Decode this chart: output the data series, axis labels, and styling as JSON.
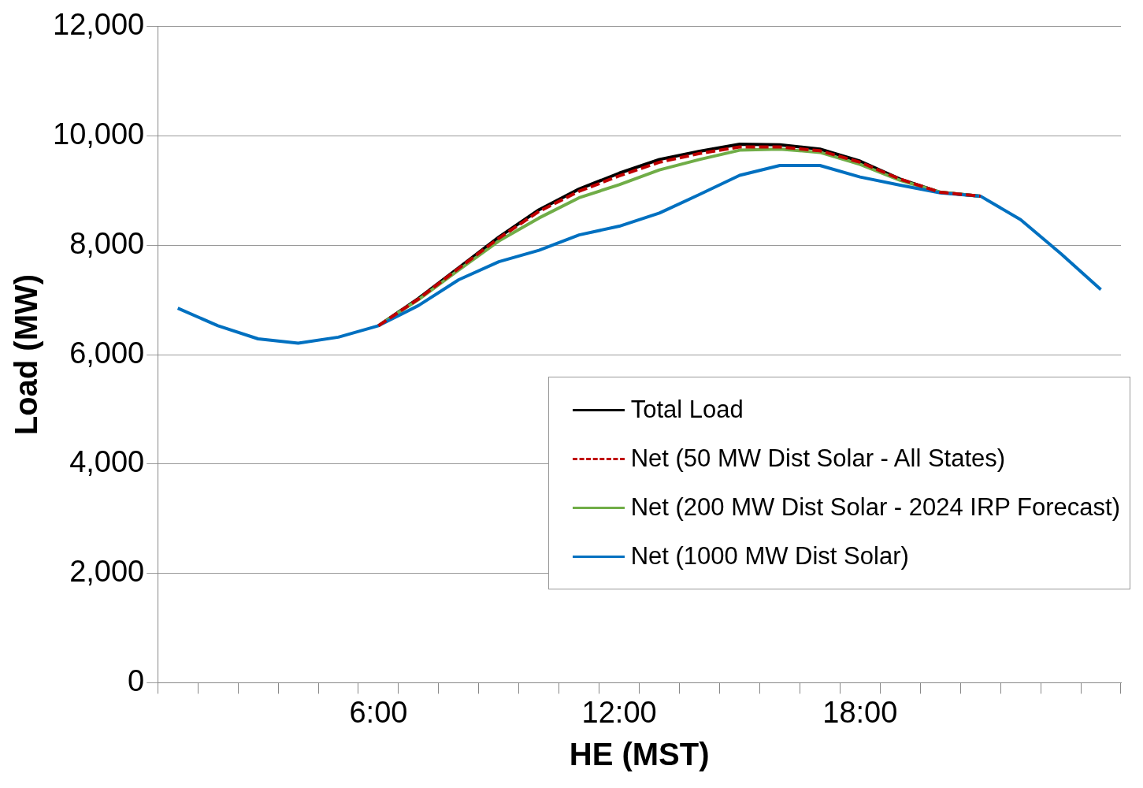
{
  "chart_data": {
    "type": "line",
    "xlabel": "HE (MST)",
    "ylabel": "Load (MW)",
    "categories": [
      null,
      null,
      null,
      null,
      null,
      "6:00",
      null,
      null,
      null,
      null,
      null,
      "12:00",
      null,
      null,
      null,
      null,
      null,
      "18:00",
      null,
      null,
      null,
      null,
      null,
      null
    ],
    "ylim": [
      0,
      12000
    ],
    "yticks": [
      {
        "value": 0,
        "label": "0"
      },
      {
        "value": 2000,
        "label": "2,000"
      },
      {
        "value": 4000,
        "label": "4,000"
      },
      {
        "value": 6000,
        "label": "6,000"
      },
      {
        "value": 8000,
        "label": "8,000"
      },
      {
        "value": 10000,
        "label": "10,000"
      },
      {
        "value": 12000,
        "label": "12,000"
      }
    ],
    "grid": "y",
    "legend": "bottom right",
    "marker": "none",
    "series": [
      {
        "name": "Total Load",
        "color": "#000000",
        "values": [
          null,
          null,
          null,
          null,
          null,
          6530,
          7030,
          7590,
          8150,
          8650,
          9030,
          9320,
          9570,
          9720,
          9850,
          9840,
          9760,
          9540,
          9210,
          8970,
          8900,
          null,
          null,
          null
        ]
      },
      {
        "name": "Net (50 MW Dist Solar - All States)",
        "color": "#c00000",
        "line_style": "dashed",
        "values": [
          null,
          null,
          null,
          null,
          null,
          6530,
          7020,
          7580,
          8130,
          8620,
          8990,
          9270,
          9520,
          9680,
          9800,
          9800,
          9730,
          9520,
          9210,
          8970,
          8900,
          null,
          null,
          null
        ]
      },
      {
        "name": "Net (200 MW Dist Solar - 2024 IRP Forecast)",
        "color": "#70ad47",
        "values": [
          null,
          null,
          null,
          null,
          null,
          6530,
          7010,
          7550,
          8080,
          8500,
          8870,
          9110,
          9380,
          9570,
          9740,
          9760,
          9700,
          9480,
          9190,
          8970,
          8900,
          null,
          null,
          null
        ]
      },
      {
        "name": "Net (1000 MW Dist Solar)",
        "color": "#0070c0",
        "values": [
          6850,
          6530,
          6290,
          6210,
          6320,
          6530,
          6900,
          7370,
          7700,
          7910,
          8190,
          8350,
          8590,
          8930,
          9280,
          9460,
          9460,
          9250,
          9100,
          8960,
          8900,
          8470,
          7850,
          7190
        ]
      }
    ]
  }
}
